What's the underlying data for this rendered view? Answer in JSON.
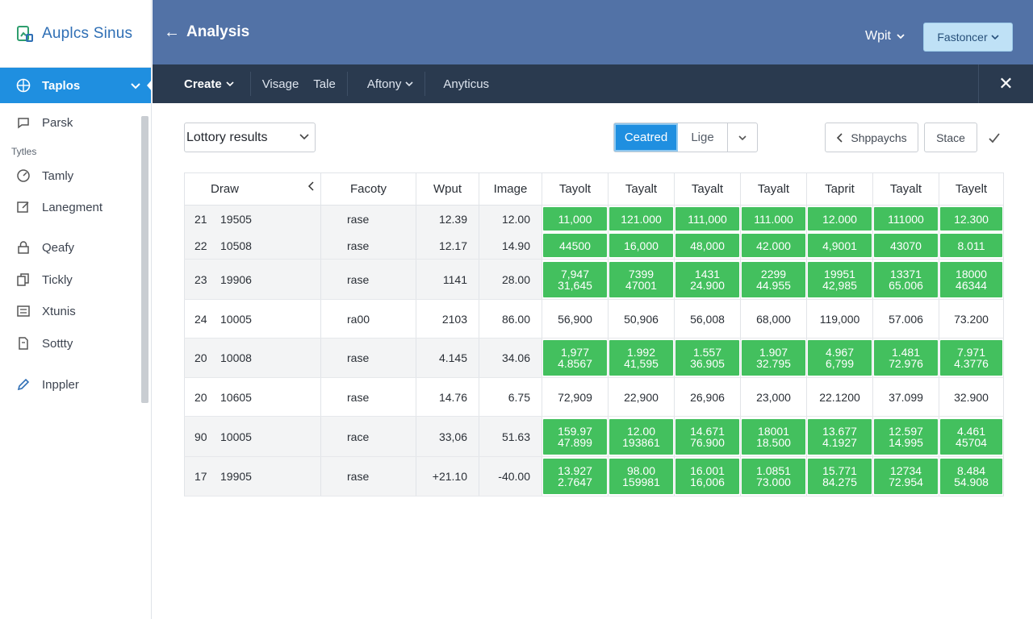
{
  "sidebar": {
    "brand": "Auplcs Sinus",
    "active_item": "Taplos",
    "section_label": "Tytles",
    "items": [
      {
        "label": "Parsk",
        "icon": "chat-bubble-icon"
      },
      {
        "label": "Tamly",
        "icon": "gauge-icon"
      },
      {
        "label": "Lanegment",
        "icon": "edit-square-icon"
      },
      {
        "label": "Qeafy",
        "icon": "lock-icon"
      },
      {
        "label": "Tickly",
        "icon": "copy-icon"
      },
      {
        "label": "Xtunis",
        "icon": "list-icon"
      },
      {
        "label": "Sottty",
        "icon": "document-icon"
      },
      {
        "label": "Inppler",
        "icon": "pencil-icon"
      }
    ]
  },
  "header": {
    "title": "Analysis",
    "user": "Wpit",
    "primary_button": "Fastoncer"
  },
  "tabs": [
    "Create",
    "Visage",
    "Tale",
    "Aftony",
    "Anyticus"
  ],
  "toolbar": {
    "dataset": "Lottory results",
    "seg_on": "Ceatred",
    "seg_off": "Lige",
    "snapshots": "Shppaychs",
    "stace": "Stace"
  },
  "table": {
    "headers": [
      "Draw",
      "Facoty",
      "Wput",
      "Image",
      "Tayolt",
      "Tayalt",
      "Tayalt",
      "Tayalt",
      "Taprit",
      "Tayalt",
      "Tayelt"
    ],
    "rows": [
      {
        "id": "21",
        "draw": "19505",
        "factor": "rase",
        "wput": "12.39",
        "image": "12.00",
        "highlight": true,
        "values": [
          "11,000",
          "121.000",
          "111,000",
          "111.000",
          "12.000",
          "111000",
          "12.300"
        ]
      },
      {
        "id": "22",
        "draw": "10508",
        "factor": "rase",
        "wput": "12.17",
        "image": "14.90",
        "highlight": true,
        "values": [
          "44500",
          "16,000",
          "48,000",
          "42.000",
          "4,9001",
          "43070",
          "8.011"
        ]
      },
      {
        "id": "23",
        "draw": "19906",
        "factor": "rase",
        "wput": "1141",
        "image": "28.00",
        "highlight": true,
        "values": [
          "7,947\n31,645",
          "7399\n47001",
          "1431\n24.900",
          "2299\n44.955",
          "19951\n42,985",
          "13371\n65.006",
          "18000\n46344"
        ]
      },
      {
        "id": "24",
        "draw": "10005",
        "factor": "ra00",
        "wput": "2103",
        "image": "86.00",
        "highlight": false,
        "values": [
          "56,900",
          "50,906",
          "56,008",
          "68,000",
          "119,000",
          "57.006",
          "73.200"
        ]
      },
      {
        "id": "20",
        "draw": "10008",
        "factor": "rase",
        "wput": "4.145",
        "image": "34.06",
        "highlight": true,
        "values": [
          "1,977\n4.8567",
          "1.992\n41,595",
          "1.557\n36.905",
          "1.907\n32.795",
          "4.967\n6,799",
          "1.481\n72.976",
          "7.971\n4.3776"
        ]
      },
      {
        "id": "20",
        "draw": "10605",
        "factor": "rase",
        "wput": "14.76",
        "image": "6.75",
        "highlight": false,
        "values": [
          "72,909",
          "22,900",
          "26,906",
          "23,000",
          "22.1200",
          "37.099",
          "32.900"
        ]
      },
      {
        "id": "90",
        "draw": "10005",
        "factor": "race",
        "wput": "33,06",
        "image": "51.63",
        "highlight": true,
        "values": [
          "159.97\n47.899",
          "12.00\n193861",
          "14.671\n76.900",
          "18001\n18.500",
          "13.677\n4.1927",
          "12.597\n14.995",
          "4.461\n45704"
        ]
      },
      {
        "id": "17",
        "draw": "19905",
        "factor": "rase",
        "wput": "+21.10",
        "image": "-40.00",
        "highlight": true,
        "values": [
          "13.927\n2.7647",
          "98.00\n159981",
          "16.001\n16,006",
          "1.0851\n73.000",
          "15.771\n84.275",
          "12734\n72.954",
          "8.484\n54.908"
        ]
      }
    ]
  },
  "colors": {
    "header": "#5272a6",
    "tabbar": "#2a3a4f",
    "accent": "#1f8fe0",
    "cell_green": "#43c05e"
  }
}
